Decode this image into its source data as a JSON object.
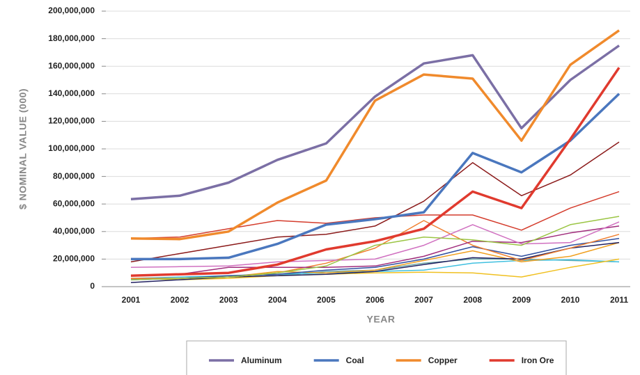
{
  "chart_data": {
    "type": "line",
    "x_label": "YEAR",
    "y_label": "$ NOMINAL VALUE (000)",
    "categories": [
      "2001",
      "2002",
      "2003",
      "2004",
      "2005",
      "2006",
      "2007",
      "2008",
      "2009",
      "2010",
      "2011"
    ],
    "ylim": [
      0,
      200000000
    ],
    "yticks": [
      0,
      {
        "value": 20000000,
        "label": "20,000,000"
      },
      {
        "value": 40000000,
        "label": "40,000,000"
      },
      {
        "value": 60000000,
        "label": "60,000,000"
      },
      {
        "value": 80000000,
        "label": "80,000,000"
      },
      {
        "value": 100000000,
        "label": "100,000,000"
      },
      {
        "value": 120000000,
        "label": "120,000,000"
      },
      {
        "value": 140000000,
        "label": "140,000,000"
      },
      {
        "value": 160000000,
        "label": "160,000,000"
      },
      {
        "value": 180000000,
        "label": "180,000,000"
      },
      {
        "value": 200000000,
        "label": "200,000,000"
      }
    ],
    "grid": true,
    "legend": "bottom",
    "series": [
      {
        "color": "#6aa6a6",
        "values": [
          5000000,
          6000000,
          7000000,
          8000000,
          11000000,
          12000000,
          17000000,
          20000000,
          20000000,
          19000000,
          18000000
        ]
      },
      {
        "color": "#40c0e0",
        "values": [
          6000000,
          7000000,
          8000000,
          9000000,
          10000000,
          11000000,
          12000000,
          17000000,
          19000000,
          19500000,
          18000000
        ]
      },
      {
        "color": "#f0c020",
        "values": [
          6000000,
          5000000,
          6000000,
          8000000,
          9000000,
          10000000,
          10500000,
          10000000,
          7000000,
          14000000,
          20000000
        ]
      },
      {
        "color": "#f0a020",
        "values": [
          6000000,
          6000000,
          7000000,
          11000000,
          10000000,
          12000000,
          19000000,
          26000000,
          18000000,
          22000000,
          32000000
        ]
      },
      {
        "color": "#202060",
        "values": [
          3000000,
          5000000,
          7000000,
          8000000,
          9000000,
          11000000,
          16000000,
          21000000,
          20000000,
          28000000,
          32000000
        ]
      },
      {
        "color": "#3050a0",
        "values": [
          5000000,
          6000000,
          8000000,
          9000000,
          12000000,
          14000000,
          20000000,
          29000000,
          22000000,
          30000000,
          35000000
        ]
      },
      {
        "color": "#f08030",
        "values": [
          6000000,
          6000000,
          7000000,
          10000000,
          17000000,
          28000000,
          48000000,
          30000000,
          19000000,
          28000000,
          38000000
        ]
      },
      {
        "color": "#a02c7c",
        "values": [
          8000000,
          9000000,
          14000000,
          14000000,
          14000000,
          15000000,
          22000000,
          33000000,
          32000000,
          39000000,
          44000000
        ]
      },
      {
        "color": "#d070c0",
        "values": [
          14000000,
          14500000,
          15000000,
          18000000,
          19000000,
          20000000,
          30000000,
          45000000,
          31000000,
          32000000,
          47000000
        ]
      },
      {
        "color": "#9bc544",
        "values": [
          5000000,
          6000000,
          7000000,
          10000000,
          15000000,
          30000000,
          36000000,
          34000000,
          30000000,
          45000000,
          51000000
        ]
      },
      {
        "color": "#d43c2c",
        "values": [
          35000000,
          36000000,
          42000000,
          48000000,
          46000000,
          50000000,
          52000000,
          52000000,
          41000000,
          57000000,
          69000000
        ]
      },
      {
        "color": "#8b1a1a",
        "values": [
          18000000,
          24000000,
          30000000,
          36000000,
          38000000,
          44000000,
          62000000,
          90000000,
          66000000,
          81000000,
          105000000
        ]
      },
      {
        "name": "Aluminum",
        "color": "#7b6fa5",
        "values": [
          63500000,
          66000000,
          75500000,
          92000000,
          104000000,
          138000000,
          162000000,
          168000000,
          115000000,
          150000000,
          175000000
        ]
      },
      {
        "name": "Coal",
        "color": "#4a77be",
        "values": [
          20000000,
          20000000,
          21000000,
          31000000,
          45000000,
          49000000,
          54000000,
          97000000,
          83000000,
          106000000,
          140000000
        ]
      },
      {
        "name": "Copper",
        "color": "#f08a2c",
        "values": [
          35000000,
          34500000,
          40000000,
          61000000,
          77000000,
          135000000,
          154000000,
          151000000,
          106000000,
          161000000,
          186000000
        ]
      },
      {
        "name": "Iron Ore",
        "color": "#e03a2e",
        "values": [
          8000000,
          9000000,
          10000000,
          16000000,
          27000000,
          33000000,
          42000000,
          69000000,
          57000000,
          107000000,
          159000000
        ]
      }
    ]
  }
}
